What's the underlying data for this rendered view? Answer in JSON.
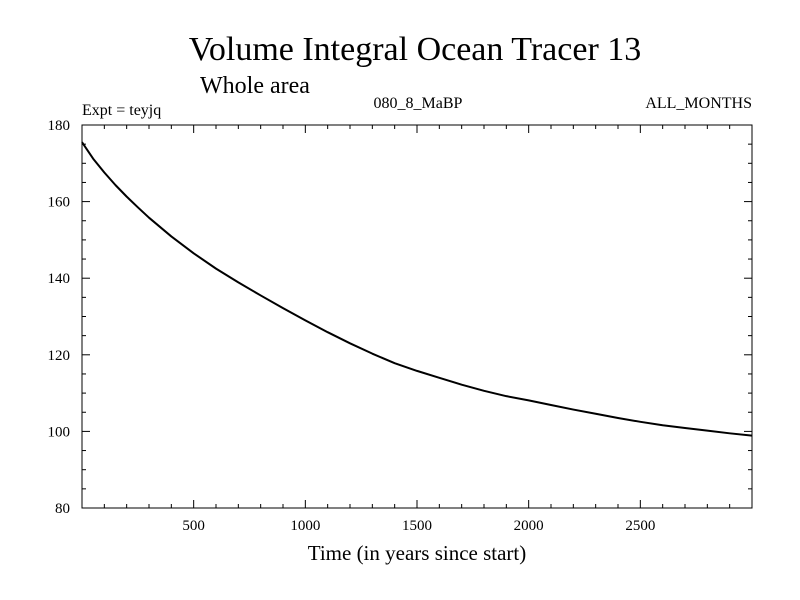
{
  "chart_data": {
    "type": "line",
    "title": "Volume Integral Ocean Tracer 13",
    "subtitle": "Whole area",
    "annotations": {
      "left": "Expt = teyjq",
      "center": "080_8_MaBP",
      "right": "ALL_MONTHS"
    },
    "xlabel": "Time (in years since start)",
    "ylabel": "",
    "xlim": [
      0,
      3000
    ],
    "ylim": [
      80,
      180
    ],
    "xticks": [
      500,
      1000,
      1500,
      2000,
      2500
    ],
    "xtick_labels": [
      "500",
      "1000",
      "1500",
      "2000",
      "2500"
    ],
    "yticks": [
      80,
      100,
      120,
      140,
      160,
      180
    ],
    "ytick_labels": [
      "80",
      "100",
      "120",
      "140",
      "160",
      "180"
    ],
    "grid": false,
    "series": [
      {
        "name": "Ocean Tracer 13",
        "color": "#000000",
        "x": [
          0,
          50,
          100,
          150,
          200,
          250,
          300,
          400,
          500,
          600,
          700,
          800,
          900,
          1000,
          1100,
          1200,
          1300,
          1400,
          1500,
          1600,
          1700,
          1800,
          1900,
          2000,
          2100,
          2200,
          2300,
          2400,
          2500,
          2600,
          2700,
          2800,
          2900,
          3000
        ],
        "y": [
          175.5,
          171.2,
          167.6,
          164.3,
          161.3,
          158.5,
          155.8,
          150.9,
          146.5,
          142.5,
          138.9,
          135.5,
          132.2,
          129.0,
          125.9,
          123.0,
          120.3,
          117.8,
          115.8,
          114.0,
          112.2,
          110.6,
          109.2,
          108.1,
          106.9,
          105.7,
          104.6,
          103.5,
          102.5,
          101.6,
          100.9,
          100.2,
          99.5,
          98.9
        ]
      }
    ]
  }
}
